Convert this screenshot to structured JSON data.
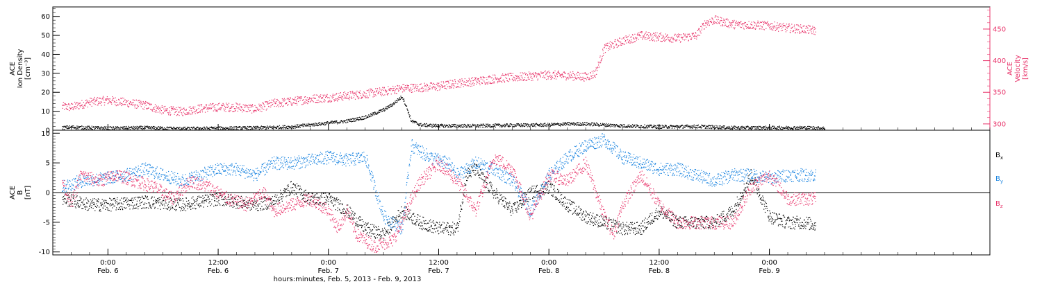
{
  "chart_data": [
    {
      "type": "scatter",
      "panel": "ace-plasma",
      "left_axis": {
        "label_lines": [
          "ACE",
          "Ion Density",
          "[cm⁻³]"
        ],
        "ylim": [
          0,
          65
        ],
        "ticks": [
          0,
          10,
          20,
          30,
          40,
          50,
          60
        ],
        "color": "#000000"
      },
      "right_axis": {
        "label_lines": [
          "ACE",
          "Velocity",
          "[km/s]"
        ],
        "ylim": [
          290,
          485
        ],
        "ticks": [
          300,
          350,
          400,
          450
        ],
        "color": "#e8336a"
      },
      "series": [
        {
          "axis": "left",
          "color": "#000000",
          "points": [
            [
              -5,
              1.5
            ],
            [
              -4,
              1.8
            ],
            [
              0,
              1.2
            ],
            [
              4,
              1.5
            ],
            [
              8,
              1
            ],
            [
              12,
              1.2
            ],
            [
              16,
              1.4
            ],
            [
              20,
              2
            ],
            [
              22,
              3
            ],
            [
              24,
              4
            ],
            [
              26,
              5
            ],
            [
              28,
              7
            ],
            [
              29,
              9
            ],
            [
              30,
              11
            ],
            [
              31,
              14
            ],
            [
              32,
              18
            ],
            [
              32.5,
              12
            ],
            [
              33,
              5
            ],
            [
              34,
              3
            ],
            [
              36,
              2.5
            ],
            [
              40,
              2.5
            ],
            [
              44,
              2.8
            ],
            [
              48,
              3
            ],
            [
              50,
              3.5
            ],
            [
              52,
              3.5
            ],
            [
              54,
              3
            ],
            [
              56,
              2.5
            ],
            [
              60,
              2
            ],
            [
              64,
              2.2
            ],
            [
              68,
              1.5
            ],
            [
              72,
              1.5
            ],
            [
              76,
              1.5
            ],
            [
              78,
              1.2
            ]
          ]
        },
        {
          "axis": "right",
          "color": "#e8336a",
          "points": [
            [
              -5,
              328
            ],
            [
              -4,
              327
            ],
            [
              -2,
              335
            ],
            [
              0,
              338
            ],
            [
              2,
              334
            ],
            [
              4,
              330
            ],
            [
              6,
              322
            ],
            [
              8,
              320
            ],
            [
              10,
              325
            ],
            [
              12,
              327
            ],
            [
              14,
              327
            ],
            [
              16,
              324
            ],
            [
              18,
              333
            ],
            [
              20,
              336
            ],
            [
              22,
              340
            ],
            [
              24,
              342
            ],
            [
              26,
              345
            ],
            [
              28,
              348
            ],
            [
              30,
              352
            ],
            [
              32,
              357
            ],
            [
              34,
              358
            ],
            [
              36,
              360
            ],
            [
              38,
              365
            ],
            [
              40,
              368
            ],
            [
              42,
              372
            ],
            [
              44,
              374
            ],
            [
              46,
              376
            ],
            [
              48,
              378
            ],
            [
              50,
              377
            ],
            [
              52,
              375
            ],
            [
              53,
              380
            ],
            [
              54,
              420
            ],
            [
              56,
              432
            ],
            [
              58,
              440
            ],
            [
              60,
              438
            ],
            [
              62,
              436
            ],
            [
              64,
              440
            ],
            [
              65,
              460
            ],
            [
              66,
              465
            ],
            [
              68,
              458
            ],
            [
              70,
              457
            ],
            [
              72,
              456
            ],
            [
              74,
              452
            ],
            [
              76,
              450
            ],
            [
              77,
              448
            ]
          ]
        }
      ]
    },
    {
      "type": "scatter",
      "panel": "ace-magnetic-field",
      "left_axis": {
        "label_lines": [
          "ACE",
          "B",
          "[nT]"
        ],
        "ylim": [
          -10.5,
          10.5
        ],
        "ticks": [
          -10,
          -5,
          0,
          5,
          10
        ],
        "color": "#000000"
      },
      "zero_line": true,
      "legend": {
        "placement": "right",
        "entries": [
          {
            "base": "B",
            "sub": "x",
            "color": "#000000"
          },
          {
            "base": "B",
            "sub": "y",
            "color": "#1a84e0"
          },
          {
            "base": "B",
            "sub": "z",
            "color": "#e8336a"
          }
        ]
      },
      "series": [
        {
          "name": "Bx",
          "color": "#000000",
          "points": [
            [
              -5,
              -1
            ],
            [
              -2,
              -2
            ],
            [
              0,
              -2
            ],
            [
              4,
              -1.5
            ],
            [
              8,
              -2
            ],
            [
              12,
              -1
            ],
            [
              14,
              -1.5
            ],
            [
              16,
              -2
            ],
            [
              18,
              -1.5
            ],
            [
              20,
              1
            ],
            [
              22,
              -1
            ],
            [
              24,
              -1
            ],
            [
              26,
              -3
            ],
            [
              28,
              -6
            ],
            [
              30,
              -7
            ],
            [
              32,
              -3
            ],
            [
              34,
              -5
            ],
            [
              36,
              -6
            ],
            [
              38,
              -6
            ],
            [
              39,
              3
            ],
            [
              40,
              4
            ],
            [
              42,
              0
            ],
            [
              44,
              -3
            ],
            [
              46,
              0
            ],
            [
              48,
              1
            ],
            [
              50,
              -2
            ],
            [
              52,
              -4
            ],
            [
              54,
              -5
            ],
            [
              56,
              -6
            ],
            [
              58,
              -6
            ],
            [
              60,
              -3
            ],
            [
              62,
              -5
            ],
            [
              64,
              -5
            ],
            [
              66,
              -5
            ],
            [
              68,
              -3
            ],
            [
              69,
              0
            ],
            [
              70,
              3
            ],
            [
              72,
              -4
            ],
            [
              74,
              -5
            ],
            [
              76,
              -5
            ],
            [
              77,
              -5.5
            ]
          ]
        },
        {
          "name": "By",
          "color": "#1a84e0",
          "points": [
            [
              -5,
              1
            ],
            [
              -3,
              2
            ],
            [
              0,
              2.5
            ],
            [
              2,
              3
            ],
            [
              4,
              4
            ],
            [
              6,
              3
            ],
            [
              8,
              2
            ],
            [
              10,
              3
            ],
            [
              12,
              4
            ],
            [
              14,
              4
            ],
            [
              16,
              3
            ],
            [
              18,
              5
            ],
            [
              20,
              5
            ],
            [
              22,
              5.5
            ],
            [
              24,
              6
            ],
            [
              26,
              5.5
            ],
            [
              28,
              6
            ],
            [
              30,
              -4
            ],
            [
              32,
              -6
            ],
            [
              33,
              8
            ],
            [
              35,
              6
            ],
            [
              37,
              5
            ],
            [
              38,
              3
            ],
            [
              40,
              5
            ],
            [
              42,
              4
            ],
            [
              44,
              2
            ],
            [
              46,
              -3
            ],
            [
              48,
              3
            ],
            [
              50,
              6
            ],
            [
              52,
              8
            ],
            [
              54,
              9
            ],
            [
              56,
              6
            ],
            [
              58,
              5
            ],
            [
              60,
              4
            ],
            [
              62,
              4
            ],
            [
              64,
              3
            ],
            [
              66,
              2
            ],
            [
              68,
              3
            ],
            [
              70,
              3
            ],
            [
              72,
              2.5
            ],
            [
              74,
              3
            ],
            [
              76,
              3
            ],
            [
              77,
              3
            ]
          ]
        },
        {
          "name": "Bz",
          "color": "#e8336a",
          "points": [
            [
              -5,
              2
            ],
            [
              -4,
              -2
            ],
            [
              -3,
              3
            ],
            [
              -1,
              2
            ],
            [
              1,
              3
            ],
            [
              3,
              2
            ],
            [
              5,
              1
            ],
            [
              7,
              -1
            ],
            [
              9,
              2
            ],
            [
              11,
              1
            ],
            [
              13,
              -1
            ],
            [
              15,
              -2
            ],
            [
              17,
              0
            ],
            [
              18,
              -3
            ],
            [
              20,
              -2
            ],
            [
              22,
              -1
            ],
            [
              24,
              -3
            ],
            [
              25,
              -6
            ],
            [
              26,
              -3
            ],
            [
              27,
              -7
            ],
            [
              28,
              -8
            ],
            [
              29,
              -9
            ],
            [
              31,
              -8
            ],
            [
              32,
              -5
            ],
            [
              33,
              -1
            ],
            [
              34,
              2
            ],
            [
              36,
              5
            ],
            [
              38,
              2
            ],
            [
              40,
              -3
            ],
            [
              42,
              6
            ],
            [
              44,
              4
            ],
            [
              46,
              -4
            ],
            [
              48,
              3
            ],
            [
              50,
              2
            ],
            [
              52,
              5
            ],
            [
              54,
              -4
            ],
            [
              55,
              -7
            ],
            [
              56,
              -2
            ],
            [
              58,
              3
            ],
            [
              60,
              -2
            ],
            [
              62,
              -5
            ],
            [
              64,
              -5
            ],
            [
              66,
              -5
            ],
            [
              68,
              -5
            ],
            [
              70,
              1
            ],
            [
              72,
              3
            ],
            [
              74,
              -1
            ],
            [
              76,
              -1
            ],
            [
              77,
              -1
            ]
          ]
        }
      ]
    }
  ],
  "x_axis": {
    "range_hours": [
      -6,
      96
    ],
    "ticks": [
      {
        "h": 0,
        "time": "0:00",
        "date": "Feb. 6"
      },
      {
        "h": 12,
        "time": "12:00",
        "date": "Feb. 6"
      },
      {
        "h": 24,
        "time": "0:00",
        "date": "Feb. 7"
      },
      {
        "h": 36,
        "time": "12:00",
        "date": "Feb. 7"
      },
      {
        "h": 48,
        "time": "0:00",
        "date": "Feb. 8"
      },
      {
        "h": 60,
        "time": "12:00",
        "date": "Feb. 8"
      },
      {
        "h": 72,
        "time": "0:00",
        "date": "Feb. 9"
      }
    ],
    "label": "hours:minutes, Feb.  5, 2013 - Feb.  9, 2013"
  }
}
